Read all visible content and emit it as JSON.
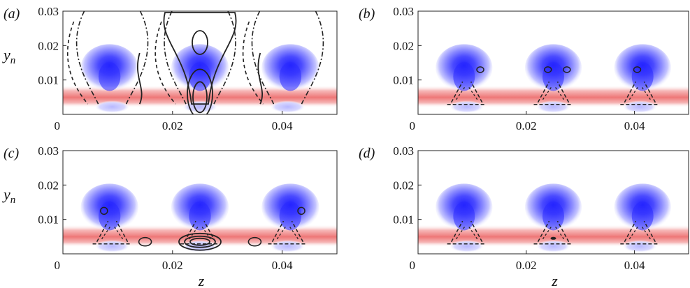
{
  "chart_data": [
    {
      "type": "heatmap",
      "panel_label": "(a)",
      "xlim": [
        0,
        0.05
      ],
      "ylim": [
        0,
        0.03
      ],
      "x_ticks": [
        "0",
        "0.02",
        "0.04"
      ],
      "y_ticks": [
        "0.01",
        "0.02",
        "0.03"
      ],
      "xlabel": "",
      "ylabel": "yn",
      "contour_style": "large solid and dashed contours spanning full height"
    },
    {
      "type": "heatmap",
      "panel_label": "(b)",
      "xlim": [
        0,
        0.05
      ],
      "ylim": [
        0,
        0.03
      ],
      "x_ticks": [
        "0",
        "0.02",
        "0.04"
      ],
      "y_ticks": [
        "0.01",
        "0.02",
        "0.03"
      ],
      "xlabel": "",
      "ylabel": "",
      "contour_style": "small dashed contours near wall"
    },
    {
      "type": "heatmap",
      "panel_label": "(c)",
      "xlim": [
        0,
        0.05
      ],
      "ylim": [
        0,
        0.03
      ],
      "x_ticks": [
        "0",
        "0.02",
        "0.04"
      ],
      "y_ticks": [
        "0.01",
        "0.02",
        "0.03"
      ],
      "xlabel": "z",
      "ylabel": "yn",
      "contour_style": "dashed contours and solid loops near wall"
    },
    {
      "type": "heatmap",
      "panel_label": "(d)",
      "xlim": [
        0,
        0.05
      ],
      "ylim": [
        0,
        0.03
      ],
      "x_ticks": [
        "0",
        "0.02",
        "0.04"
      ],
      "y_ticks": [
        "0.01",
        "0.02",
        "0.03"
      ],
      "xlabel": "z",
      "ylabel": "",
      "contour_style": "small dashed contours near wall"
    }
  ],
  "colors": {
    "blue": "#2a2aff",
    "red": "#ee6666",
    "lightblue": "#c8c8ff",
    "contour": "#222222"
  },
  "ylabel_sub": "n",
  "ylabel_main": "y"
}
